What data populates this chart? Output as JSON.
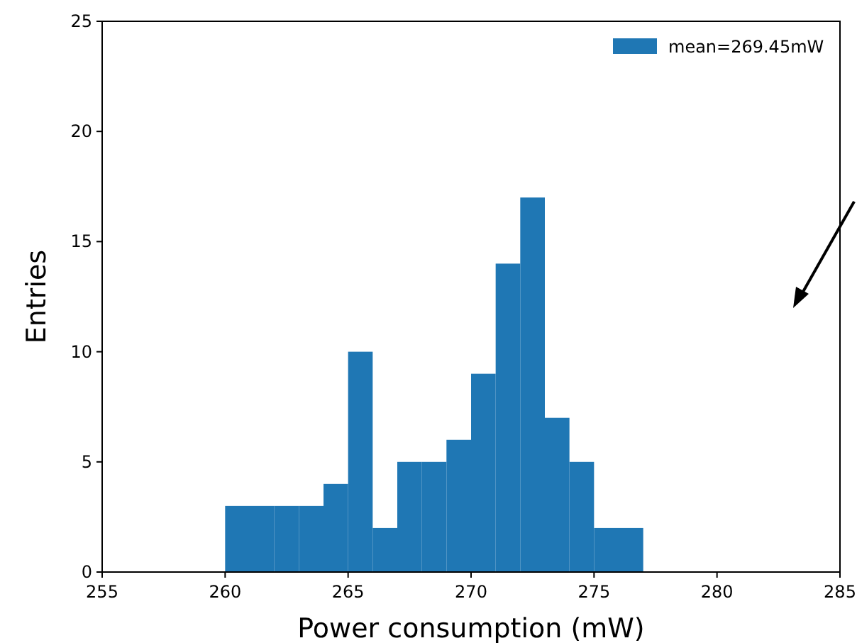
{
  "chart_data": {
    "type": "histogram",
    "xlabel": "Power consumption (mW)",
    "ylabel": "Entries",
    "bins": [
      260,
      261,
      262,
      263,
      264,
      265,
      266,
      267,
      268,
      269,
      270,
      271,
      272,
      273,
      274,
      275,
      276,
      277
    ],
    "series": [
      {
        "name": "mean=269.45mW",
        "color": "#1f77b4",
        "values": [
          3,
          3,
          3,
          3,
          4,
          10,
          2,
          5,
          5,
          6,
          9,
          14,
          17,
          7,
          5,
          2,
          2
        ]
      }
    ],
    "xlim": [
      255,
      285
    ],
    "xticks": [
      255,
      260,
      265,
      270,
      275,
      280,
      285
    ],
    "ylim": [
      0,
      25
    ],
    "yticks": [
      0,
      5,
      10,
      15,
      20,
      25
    ],
    "legend": "top right",
    "grid": false
  }
}
